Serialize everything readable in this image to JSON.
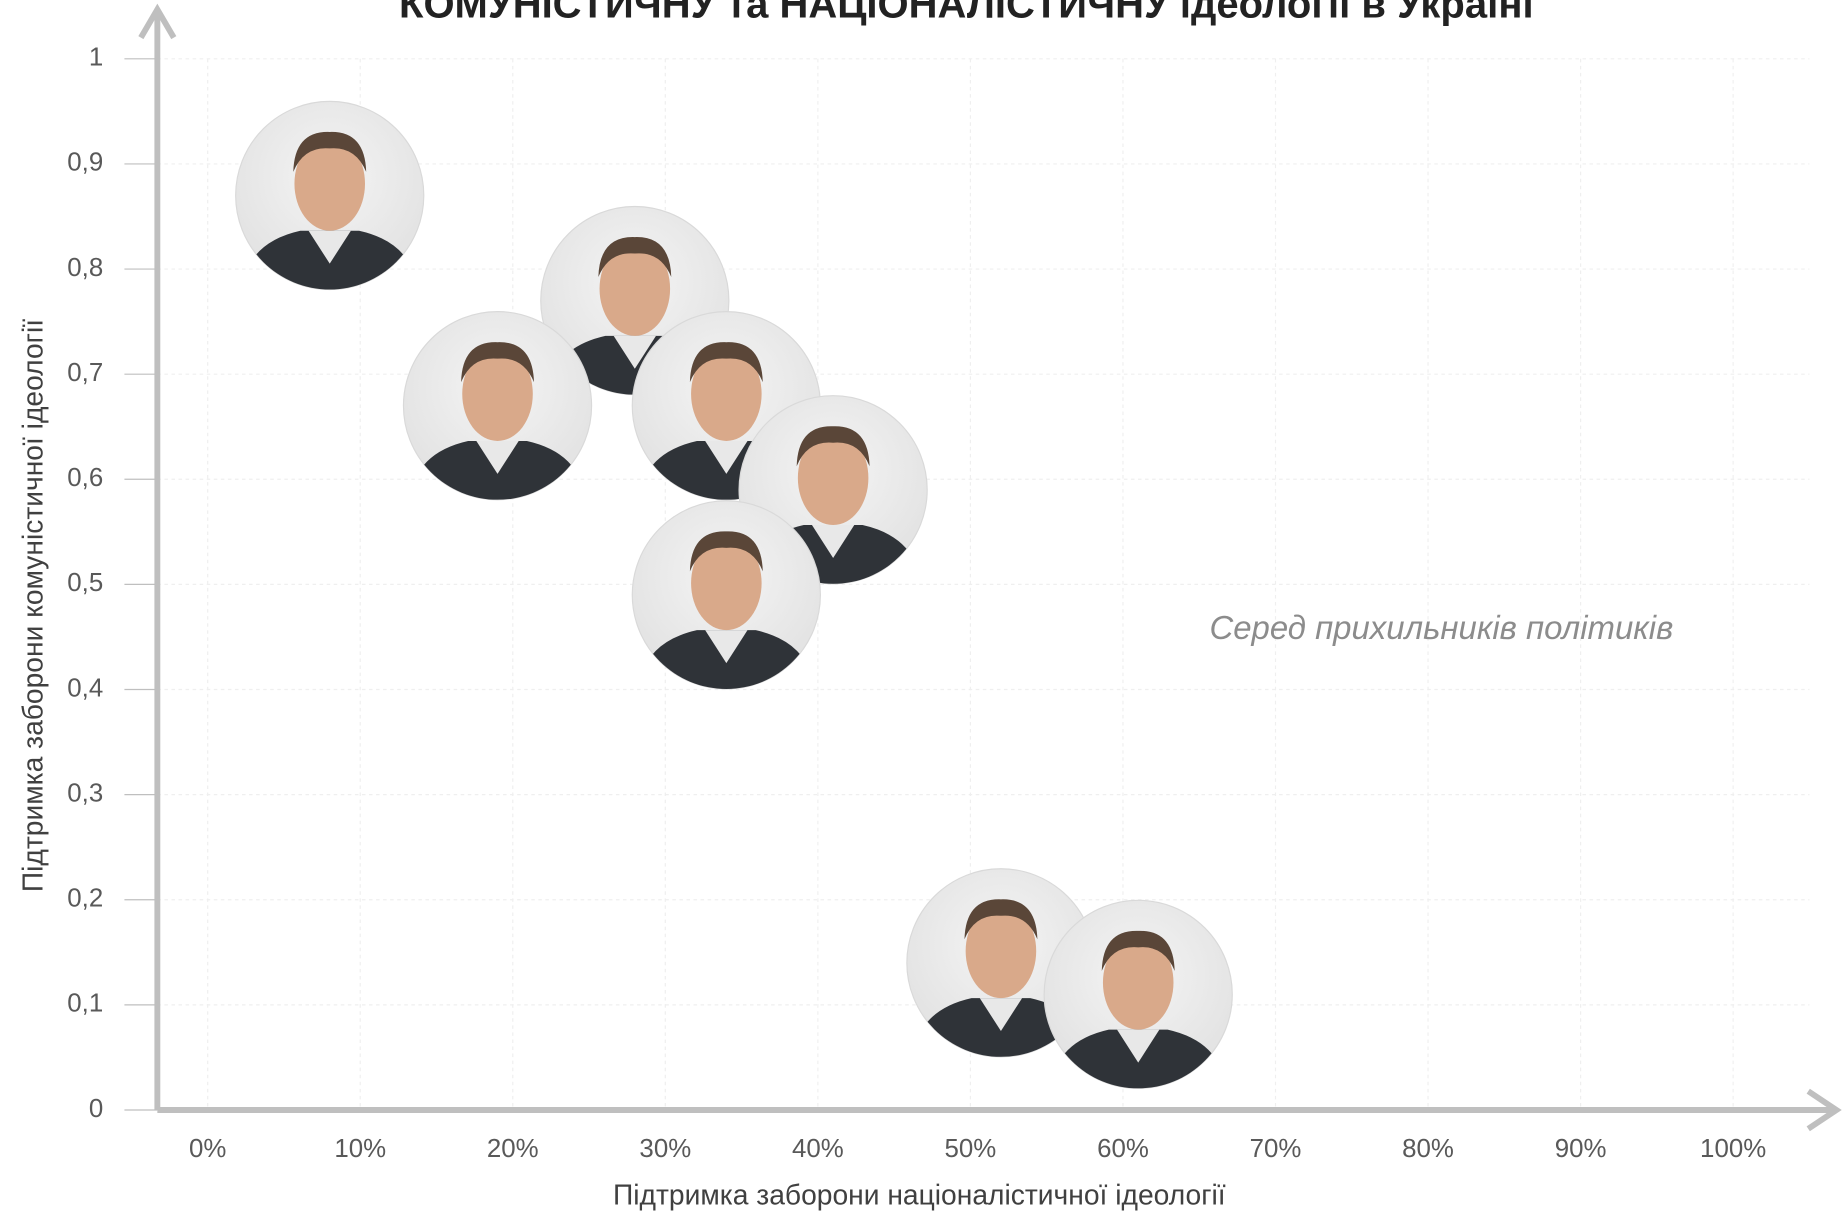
{
  "chart_data": {
    "type": "scatter",
    "title": "КОМУНІСТИЧНУ та НАЦІОНАЛІСТИЧНУ ідеології в Україні",
    "xlabel": "Підтримка заборони націоналістичної ідеології",
    "ylabel": "Підтримка заборони комуністичної ідеології",
    "annotation": "Серед прихильників політиків",
    "color": "#d9d9d9",
    "x": [
      8,
      28,
      19,
      34,
      41,
      34,
      52,
      61
    ],
    "values": [
      0.87,
      0.77,
      0.67,
      0.67,
      0.59,
      0.49,
      0.14,
      0.11
    ],
    "xlim": [
      -3.3,
      105
    ],
    "ylim": [
      0,
      1
    ],
    "xticks": [
      {
        "value": 0,
        "label": "0%"
      },
      {
        "value": 10,
        "label": "10%"
      },
      {
        "value": 20,
        "label": "20%"
      },
      {
        "value": 30,
        "label": "30%"
      },
      {
        "value": 40,
        "label": "40%"
      },
      {
        "value": 50,
        "label": "50%"
      },
      {
        "value": 60,
        "label": "60%"
      },
      {
        "value": 70,
        "label": "70%"
      },
      {
        "value": 80,
        "label": "80%"
      },
      {
        "value": 90,
        "label": "90%"
      },
      {
        "value": 100,
        "label": "100%"
      }
    ],
    "yticks": [
      0,
      {
        "value": 0.1,
        "label": "0,1"
      },
      {
        "value": 0.2,
        "label": "0,2"
      },
      {
        "value": 0.3,
        "label": "0,3"
      },
      {
        "value": 0.4,
        "label": "0,4"
      },
      {
        "value": 0.5,
        "label": "0,5"
      },
      {
        "value": 0.6,
        "label": "0,6"
      },
      {
        "value": 0.7,
        "label": "0,7"
      },
      {
        "value": 0.8,
        "label": "0,8"
      },
      {
        "value": 0.9,
        "label": "0,9"
      },
      1
    ],
    "grid": true
  }
}
